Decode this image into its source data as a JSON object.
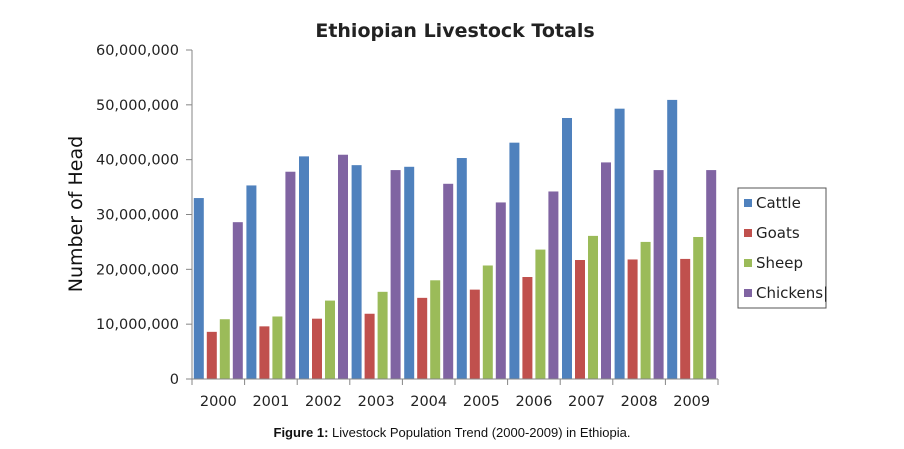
{
  "chart_data": {
    "type": "bar",
    "title": "Ethiopian Livestock Totals",
    "xlabel": "",
    "ylabel": "Number of Head",
    "categories": [
      "2000",
      "2001",
      "2002",
      "2003",
      "2004",
      "2005",
      "2006",
      "2007",
      "2008",
      "2009"
    ],
    "series": [
      {
        "name": "Cattle",
        "color": "#4f81bd",
        "values": [
          33000000,
          35300000,
          40600000,
          39000000,
          38700000,
          40300000,
          43100000,
          47600000,
          49300000,
          50900000
        ]
      },
      {
        "name": "Goats",
        "color": "#c0504d",
        "values": [
          8600000,
          9600000,
          11000000,
          11900000,
          14800000,
          16300000,
          18600000,
          21700000,
          21800000,
          21900000
        ]
      },
      {
        "name": "Sheep",
        "color": "#9bbb59",
        "values": [
          10900000,
          11400000,
          14300000,
          15900000,
          18000000,
          20700000,
          23600000,
          26100000,
          25000000,
          25900000
        ]
      },
      {
        "name": "Chickens|",
        "color": "#8064a2",
        "values": [
          28600000,
          37800000,
          40900000,
          38100000,
          35600000,
          32200000,
          34200000,
          39500000,
          38100000,
          38100000
        ]
      }
    ],
    "ylim": [
      0,
      60000000
    ],
    "yticks": [
      "0",
      "10,000,000",
      "20,000,000",
      "30,000,000",
      "40,000,000",
      "50,000,000",
      "60,000,000"
    ],
    "ytick_values": [
      0,
      10000000,
      20000000,
      30000000,
      40000000,
      50000000,
      60000000
    ],
    "grid": false,
    "legend_position": "right"
  },
  "caption": {
    "label": "Figure 1:",
    "text": " Livestock Population Trend (2000-2009) in Ethiopia."
  }
}
